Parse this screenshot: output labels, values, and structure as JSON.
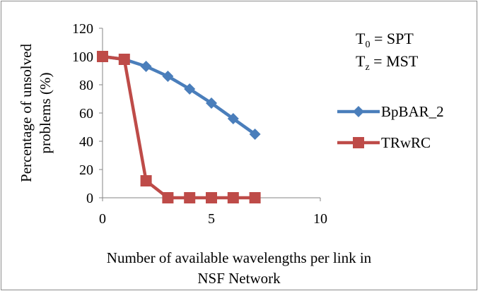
{
  "chart_data": {
    "type": "line",
    "xlabel_lines": [
      "Number of available wavelengths per link in",
      "NSF Network"
    ],
    "ylabel_lines": [
      "Percentage of unsolved",
      "problems  (%)"
    ],
    "xlim": [
      0,
      10
    ],
    "ylim": [
      0,
      120
    ],
    "x_ticks": [
      0,
      5,
      10
    ],
    "y_ticks": [
      0,
      20,
      40,
      60,
      80,
      100,
      120
    ],
    "grid": false,
    "legend_position": "right",
    "series": [
      {
        "name": "BpBAR_2",
        "color": "#4a7ebb",
        "marker": "diamond",
        "x": [
          0,
          1,
          2,
          3,
          4,
          5,
          6,
          7
        ],
        "y": [
          100,
          98,
          93,
          86,
          77,
          67,
          56,
          45
        ]
      },
      {
        "name": "TRwRC",
        "color": "#be4b48",
        "marker": "square",
        "x": [
          0,
          1,
          2,
          3,
          4,
          5,
          6,
          7
        ],
        "y": [
          100,
          98,
          12,
          0,
          0,
          0,
          0,
          0
        ]
      }
    ],
    "annotations": {
      "t0": {
        "base": "T",
        "sub": "0",
        "rest": " = SPT"
      },
      "tz": {
        "base": "T",
        "sub": "z",
        "rest": " = MST"
      }
    }
  }
}
